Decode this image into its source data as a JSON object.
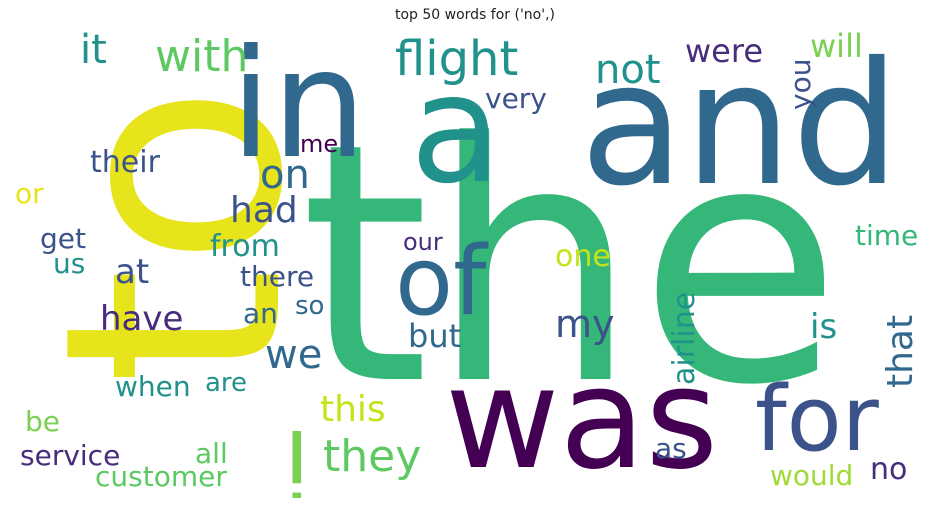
{
  "title": "top 50 words for ('no',)",
  "colors": {
    "yellow": "#e8e41c",
    "lime": "#9bd93c",
    "lightgreen": "#5ec962",
    "green": "#35b779",
    "teal": "#21918c",
    "blue": "#31688e",
    "indigo": "#3b528b",
    "purple": "#440154",
    "violet": "#472d7b"
  },
  "words": {
    "to": "to",
    "in": "in",
    "a": "a",
    "and": "and",
    "the": "the",
    "was": "was",
    "for": "for",
    "of": "of",
    "i": "i",
    "flight": "flight",
    "with": "with",
    "it": "it",
    "not": "not",
    "were": "were",
    "will": "will",
    "you": "you",
    "very": "very",
    "their": "their",
    "me": "me",
    "on": "on",
    "or": "or",
    "had": "had",
    "get": "get",
    "us": "us",
    "from": "from",
    "our": "our",
    "one": "one",
    "time": "time",
    "at": "at",
    "there": "there",
    "have": "have",
    "an": "an",
    "so": "so",
    "my": "my",
    "airline": "airline",
    "is": "is",
    "that": "that",
    "we": "we",
    "but": "but",
    "when": "when",
    "are": "are",
    "this": "this",
    "be": "be",
    "they": "they",
    "service": "service",
    "all": "all",
    "as": "as",
    "customer": "customer",
    "would": "would",
    "no": "no"
  }
}
